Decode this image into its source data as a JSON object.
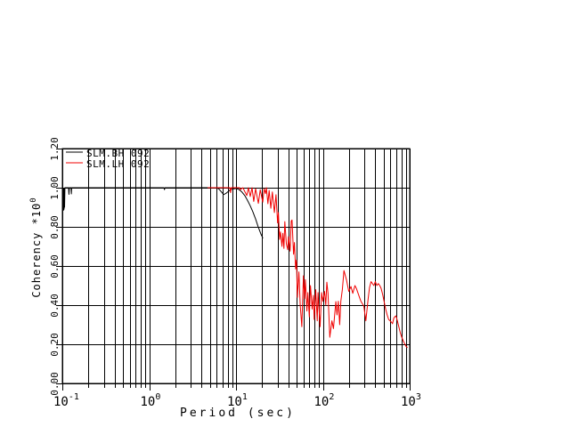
{
  "canvas": {
    "background": "#ffffff",
    "grid_color": "#000000"
  },
  "chart_data": {
    "type": "line",
    "title": "",
    "xlabel": "Period (sec)",
    "ylabel": "Coherency *10^0",
    "ylabel_base": "Coherency *10",
    "ylabel_exp": "0",
    "xscale": "log",
    "xlim": [
      0.1,
      1000
    ],
    "ylim": [
      0.0,
      1.2
    ],
    "grid": "on",
    "legend_position": "top-left",
    "x_ticks": [
      {
        "base": "10",
        "exp": "-1"
      },
      {
        "base": "10",
        "exp": "0"
      },
      {
        "base": "10",
        "exp": "1"
      },
      {
        "base": "10",
        "exp": "2"
      },
      {
        "base": "10",
        "exp": "3"
      }
    ],
    "y_ticks": [
      "0.00",
      "0.20",
      "0.40",
      "0.60",
      "0.80",
      "1.00",
      "1.20"
    ],
    "series": [
      {
        "name": "SLM.BH 092",
        "color": "#000000",
        "points": [
          [
            0.1,
            1.0
          ],
          [
            0.1005,
            0.89
          ],
          [
            0.101,
            0.995
          ],
          [
            0.1015,
            0.885
          ],
          [
            0.102,
            0.99
          ],
          [
            0.1025,
            0.888
          ],
          [
            0.103,
            0.995
          ],
          [
            0.1035,
            0.885
          ],
          [
            0.104,
            0.99
          ],
          [
            0.1045,
            0.89
          ],
          [
            0.105,
            0.995
          ],
          [
            0.106,
            0.9
          ],
          [
            0.107,
            1.0
          ],
          [
            0.118,
            1.0
          ],
          [
            0.119,
            0.966
          ],
          [
            0.1205,
            1.0
          ],
          [
            0.126,
            1.0
          ],
          [
            0.127,
            0.968
          ],
          [
            0.128,
            1.0
          ],
          [
            1.48,
            1.0
          ],
          [
            1.5,
            0.99
          ],
          [
            1.52,
            1.0
          ],
          [
            5.9,
            1.0
          ],
          [
            6.3,
            0.995
          ],
          [
            6.8,
            0.978
          ],
          [
            7.2,
            0.965
          ],
          [
            7.6,
            0.97
          ],
          [
            8.1,
            0.98
          ],
          [
            8.7,
            0.99
          ],
          [
            9.4,
            0.994
          ],
          [
            10.1,
            0.996
          ],
          [
            10.9,
            0.99
          ],
          [
            11.7,
            0.978
          ],
          [
            12.6,
            0.96
          ],
          [
            13.5,
            0.937
          ],
          [
            14.5,
            0.91
          ],
          [
            15.6,
            0.878
          ],
          [
            16.8,
            0.84
          ],
          [
            18.0,
            0.8
          ],
          [
            19.4,
            0.762
          ],
          [
            20.4,
            0.742
          ]
        ]
      },
      {
        "name": "SLM.LH 092",
        "color": "#f00000",
        "points": [
          [
            4.7,
            1.0
          ],
          [
            6.3,
            1.0
          ],
          [
            8.5,
            1.0
          ],
          [
            8.66,
            0.975
          ],
          [
            8.8,
            1.0
          ],
          [
            11.0,
            1.0
          ],
          [
            11.2,
            0.99
          ],
          [
            12.0,
            1.0
          ],
          [
            13.3,
            0.96
          ],
          [
            13.9,
            1.0
          ],
          [
            14.6,
            0.955
          ],
          [
            15.3,
            1.0
          ],
          [
            16.0,
            0.93
          ],
          [
            16.8,
            0.995
          ],
          [
            18.1,
            0.92
          ],
          [
            19.0,
            0.99
          ],
          [
            20.3,
            0.926
          ],
          [
            21.1,
            0.994
          ],
          [
            21.9,
            0.97
          ],
          [
            22.4,
            1.0
          ],
          [
            23.3,
            0.918
          ],
          [
            24.1,
            0.986
          ],
          [
            25.2,
            0.895
          ],
          [
            26.2,
            0.978
          ],
          [
            27.7,
            0.873
          ],
          [
            28.9,
            0.964
          ],
          [
            30.1,
            0.82
          ],
          [
            30.8,
            0.873
          ],
          [
            31.7,
            0.736
          ],
          [
            32.5,
            0.774
          ],
          [
            33.8,
            0.7
          ],
          [
            34.6,
            0.767
          ],
          [
            35.6,
            0.69
          ],
          [
            36.5,
            0.827
          ],
          [
            38.0,
            0.714
          ],
          [
            39.4,
            0.683
          ],
          [
            40.3,
            0.75
          ],
          [
            41.9,
            0.676
          ],
          [
            43.2,
            0.83
          ],
          [
            44.2,
            0.835
          ],
          [
            46.0,
            0.66
          ],
          [
            47.1,
            0.72
          ],
          [
            48.6,
            0.585
          ],
          [
            49.7,
            0.63
          ],
          [
            50.9,
            0.44
          ],
          [
            53.0,
            0.57
          ],
          [
            54.9,
            0.4
          ],
          [
            57.3,
            0.29
          ],
          [
            59.7,
            0.55
          ],
          [
            61.6,
            0.433
          ],
          [
            63.0,
            0.53
          ],
          [
            65.6,
            0.37
          ],
          [
            67.2,
            0.464
          ],
          [
            69.9,
            0.34
          ],
          [
            72.0,
            0.5
          ],
          [
            75.4,
            0.38
          ],
          [
            77.7,
            0.45
          ],
          [
            79.5,
            0.327
          ],
          [
            82.8,
            0.479
          ],
          [
            86.1,
            0.32
          ],
          [
            88.1,
            0.464
          ],
          [
            93.0,
            0.29
          ],
          [
            96.7,
            0.464
          ],
          [
            100.0,
            0.42
          ],
          [
            104.5,
            0.47
          ],
          [
            108.2,
            0.4
          ],
          [
            111.3,
            0.517
          ],
          [
            114.7,
            0.46
          ],
          [
            120.2,
            0.236
          ],
          [
            127.1,
            0.32
          ],
          [
            132.3,
            0.28
          ],
          [
            141.2,
            0.418
          ],
          [
            145.6,
            0.35
          ],
          [
            150.9,
            0.42
          ],
          [
            156.3,
            0.3
          ],
          [
            161.1,
            0.42
          ],
          [
            167.6,
            0.48
          ],
          [
            175.0,
            0.577
          ],
          [
            187.0,
            0.53
          ],
          [
            199.0,
            0.47
          ],
          [
            211.0,
            0.495
          ],
          [
            221.0,
            0.46
          ],
          [
            234.0,
            0.5
          ],
          [
            243.0,
            0.486
          ],
          [
            264.0,
            0.44
          ],
          [
            274.0,
            0.42
          ],
          [
            296.0,
            0.395
          ],
          [
            313.0,
            0.32
          ],
          [
            332.0,
            0.43
          ],
          [
            345.0,
            0.49
          ],
          [
            359.0,
            0.52
          ],
          [
            387.0,
            0.5
          ],
          [
            402.0,
            0.52
          ],
          [
            418.0,
            0.5
          ],
          [
            435.0,
            0.51
          ],
          [
            452.0,
            0.5
          ],
          [
            469.0,
            0.486
          ],
          [
            488.0,
            0.456
          ],
          [
            508.0,
            0.418
          ],
          [
            528.0,
            0.38
          ],
          [
            550.0,
            0.35
          ],
          [
            573.0,
            0.327
          ],
          [
            595.0,
            0.32
          ],
          [
            619.0,
            0.312
          ],
          [
            634.0,
            0.305
          ],
          [
            659.0,
            0.335
          ],
          [
            679.0,
            0.342
          ],
          [
            695.0,
            0.345
          ],
          [
            722.0,
            0.32
          ],
          [
            749.0,
            0.29
          ],
          [
            779.0,
            0.26
          ],
          [
            810.0,
            0.236
          ],
          [
            841.0,
            0.218
          ],
          [
            874.0,
            0.203
          ],
          [
            908.0,
            0.19
          ],
          [
            942.0,
            0.183
          ]
        ]
      }
    ]
  }
}
